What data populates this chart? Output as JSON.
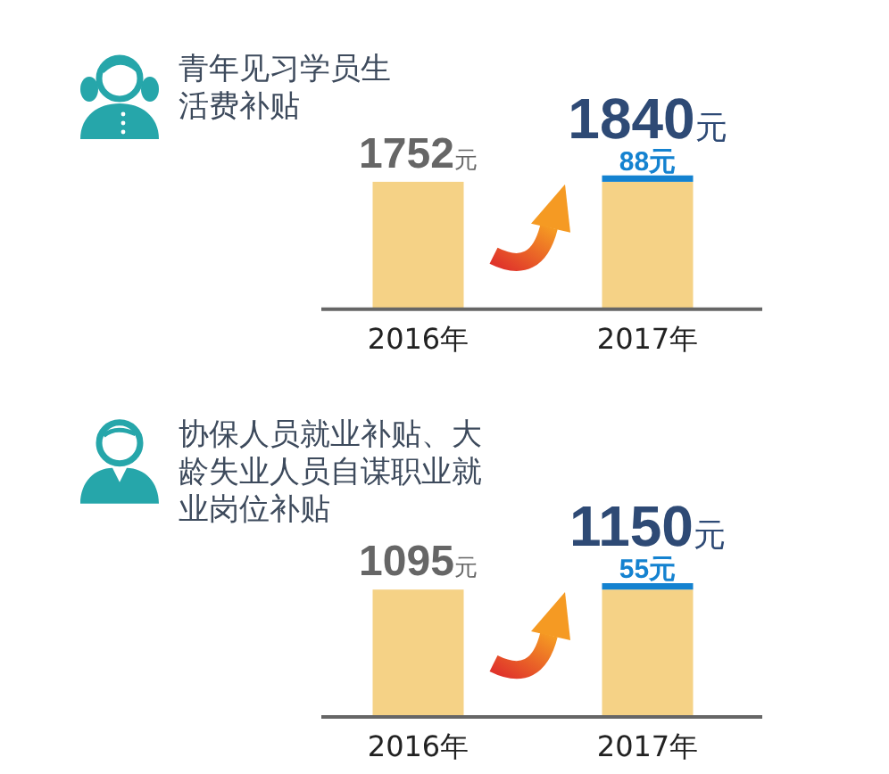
{
  "chart_data": [
    {
      "type": "bar",
      "stacked": true,
      "title": "青年见习学员生活费补贴",
      "categories": [
        "2016年",
        "2017年"
      ],
      "series": [
        {
          "color": "#f5d286",
          "values": [
            1752,
            1752
          ],
          "value_labels": [
            "1752元",
            null
          ]
        },
        {
          "color": "#1482d0",
          "values": [
            null,
            88
          ],
          "value_labels": [
            null,
            "88元"
          ]
        }
      ],
      "totals": [
        null,
        "1840元"
      ]
    },
    {
      "type": "bar",
      "stacked": true,
      "title": "协保人员就业补贴、大龄失业人员自谋职业就业岗位补贴",
      "categories": [
        "2016年",
        "2017年"
      ],
      "series": [
        {
          "color": "#f5d286",
          "values": [
            1095,
            1095
          ],
          "value_labels": [
            "1095元",
            null
          ]
        },
        {
          "color": "#1482d0",
          "values": [
            null,
            55
          ],
          "value_labels": [
            null,
            "55元"
          ]
        }
      ],
      "totals": [
        null,
        "1150元"
      ]
    }
  ]
}
